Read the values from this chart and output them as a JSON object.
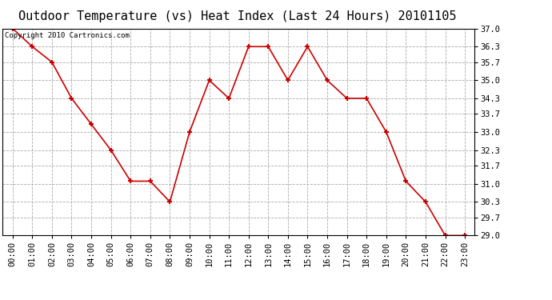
{
  "title": "Outdoor Temperature (vs) Heat Index (Last 24 Hours) 20101105",
  "copyright_text": "Copyright 2010 Cartronics.com",
  "x_labels": [
    "00:00",
    "01:00",
    "02:00",
    "03:00",
    "04:00",
    "05:00",
    "06:00",
    "07:00",
    "08:00",
    "09:00",
    "10:00",
    "11:00",
    "12:00",
    "13:00",
    "14:00",
    "15:00",
    "16:00",
    "17:00",
    "18:00",
    "19:00",
    "20:00",
    "21:00",
    "22:00",
    "23:00"
  ],
  "y_values": [
    37.0,
    36.3,
    35.7,
    34.3,
    33.3,
    32.3,
    31.1,
    31.1,
    30.3,
    33.0,
    35.0,
    34.3,
    36.3,
    36.3,
    35.0,
    36.3,
    35.0,
    34.3,
    34.3,
    33.0,
    31.1,
    30.3,
    29.0,
    29.0
  ],
  "line_color": "#cc0000",
  "marker": "+",
  "marker_size": 5,
  "marker_edge_width": 1.5,
  "line_width": 1.2,
  "bg_color": "#ffffff",
  "plot_bg_color": "#ffffff",
  "grid_color": "#aaaaaa",
  "y_tick_labels": [
    "29.0",
    "29.7",
    "30.3",
    "31.0",
    "31.7",
    "32.3",
    "33.0",
    "33.7",
    "34.3",
    "35.0",
    "35.7",
    "36.3",
    "37.0"
  ],
  "y_tick_values": [
    29.0,
    29.7,
    30.3,
    31.0,
    31.7,
    32.3,
    33.0,
    33.7,
    34.3,
    35.0,
    35.7,
    36.3,
    37.0
  ],
  "ylim": [
    29.0,
    37.0
  ],
  "title_fontsize": 11,
  "copyright_fontsize": 6.5,
  "axis_fontsize": 7.5
}
